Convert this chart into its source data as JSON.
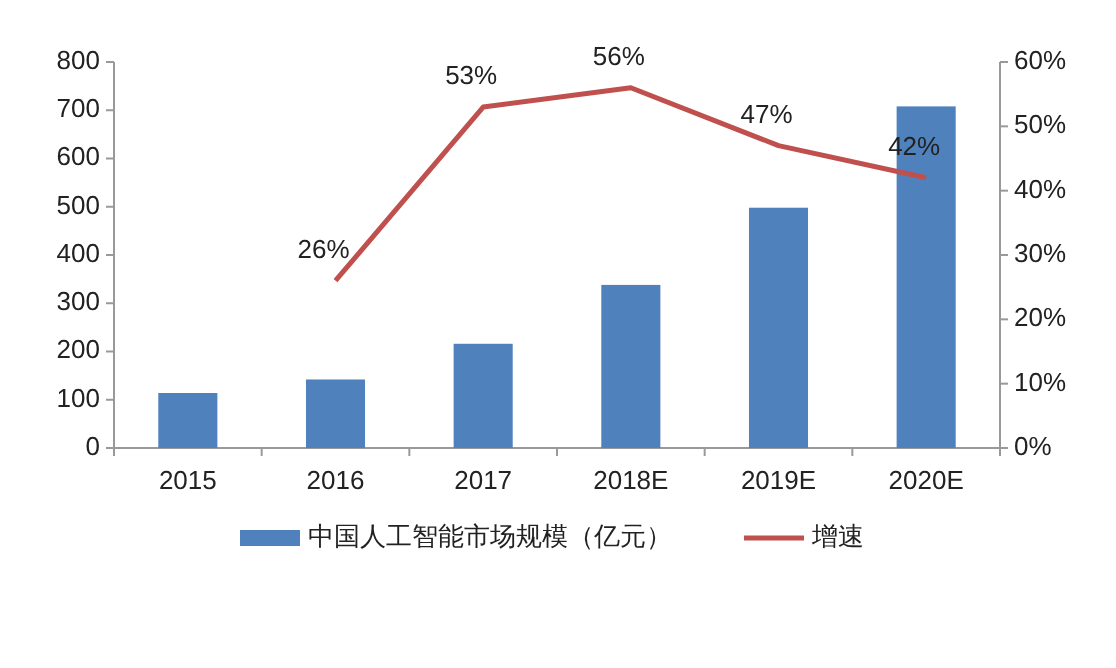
{
  "chart_data": {
    "type": "bar",
    "categories": [
      "2015",
      "2016",
      "2017",
      "2018E",
      "2019E",
      "2020E"
    ],
    "series": [
      {
        "name": "中国人工智能市场规模（亿元）",
        "color": "#4f81bd",
        "values": [
          114,
          142,
          216,
          338,
          498,
          708
        ]
      },
      {
        "name": "增速",
        "type": "line",
        "axis": "y2",
        "color": "#c0504d",
        "values": [
          null,
          26,
          53,
          56,
          47,
          42
        ],
        "value_labels": [
          null,
          "26%",
          "53%",
          "56%",
          "47%",
          "42%"
        ]
      }
    ],
    "ylim": [
      0,
      800
    ],
    "yticks": [
      0,
      100,
      200,
      300,
      400,
      500,
      600,
      700,
      800
    ],
    "y2lim": [
      0,
      60
    ],
    "y2ticks": [
      {
        "value": 0,
        "label": "0%"
      },
      {
        "value": 10,
        "label": "10%"
      },
      {
        "value": 20,
        "label": "20%"
      },
      {
        "value": 30,
        "label": "30%"
      },
      {
        "value": 40,
        "label": "40%"
      },
      {
        "value": 50,
        "label": "50%"
      },
      {
        "value": 60,
        "label": "60%"
      }
    ],
    "grid": false,
    "legend": "bottom",
    "marker": "none",
    "line_style": "solid"
  }
}
